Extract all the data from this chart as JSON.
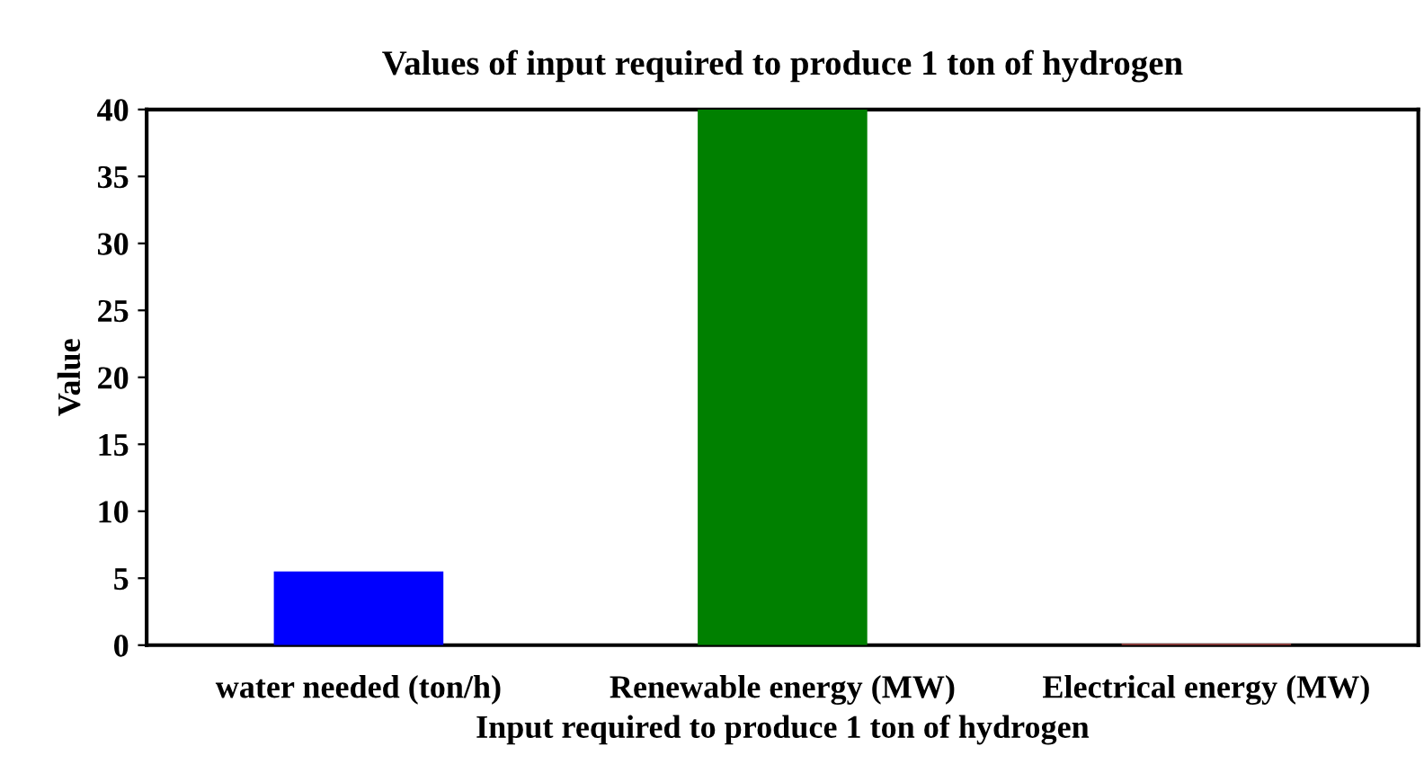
{
  "chart_data": {
    "type": "bar",
    "title": "Values of input required to produce 1 ton of hydrogen",
    "xlabel": "Input required to produce 1 ton of hydrogen",
    "ylabel": "Value",
    "categories": [
      "water needed (ton/h)",
      "Renewable energy (MW)",
      "Electrical energy (MW)"
    ],
    "values": [
      5.5,
      40,
      0.1
    ],
    "colors": [
      "#0000ff",
      "#008000",
      "#c0504d"
    ],
    "ylim": [
      0,
      40
    ],
    "yticks": [
      0,
      5,
      10,
      15,
      20,
      25,
      30,
      35,
      40
    ],
    "grid": false,
    "legend": false
  }
}
